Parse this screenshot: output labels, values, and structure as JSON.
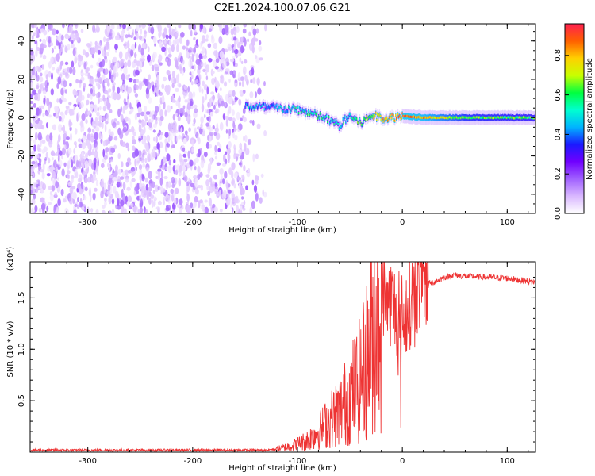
{
  "figure_title": "C2E1.2024.100.07.06.G21",
  "chart_data": [
    {
      "type": "heatmap",
      "xlabel": "Height of straight line (km)",
      "ylabel": "Frequency (Hz)",
      "xlim": [
        -355,
        127
      ],
      "ylim": [
        -50,
        49
      ],
      "x_ticks": [
        -300,
        -200,
        -100,
        0,
        100
      ],
      "y_ticks": [
        -40,
        -20,
        0,
        20,
        40
      ],
      "colorbar": {
        "label": "Normalized spectral amplitude",
        "range": [
          0,
          0.96
        ],
        "ticks": [
          "0.0",
          "0.2",
          "0.4",
          "0.6",
          "0.8"
        ],
        "colors": [
          "#ffffff",
          "#d9b8ff",
          "#a060ff",
          "#7000ff",
          "#1a1aff",
          "#00b4ff",
          "#00ffd0",
          "#00ff40",
          "#c8ff00",
          "#ffd000",
          "#ff6000",
          "#ff2050"
        ]
      },
      "regions": [
        {
          "name": "noise",
          "x_range": [
            -355,
            -130
          ],
          "y_range": [
            -50,
            49
          ],
          "amplitude": 0.08
        },
        {
          "name": "signal-track",
          "x": [
            -150,
            -120,
            -100,
            -80,
            -60,
            -50,
            -40,
            -30,
            -20,
            -10,
            0,
            20,
            60,
            127
          ],
          "y": [
            6,
            5,
            4,
            1,
            -4,
            1,
            -3,
            1,
            0,
            0,
            1,
            0,
            0,
            0
          ],
          "amplitude": [
            0.45,
            0.45,
            0.5,
            0.55,
            0.5,
            0.55,
            0.6,
            0.7,
            0.8,
            0.85,
            0.85,
            0.8,
            0.65,
            0.6
          ]
        }
      ]
    },
    {
      "type": "line",
      "xlabel": "Height of straight line (km)",
      "ylabel": "SNR (10 * v/v)",
      "y_multiplier_label": "(x10⁴)",
      "xlim": [
        -355,
        127
      ],
      "ylim": [
        0,
        1.85
      ],
      "x_ticks": [
        -300,
        -200,
        -100,
        0,
        100
      ],
      "y_ticks": [
        "0.5",
        "1.0",
        "1.5"
      ],
      "y_tick_values": [
        0.5,
        1.0,
        1.5
      ],
      "color": "#ee3333",
      "series": [
        {
          "x": [
            -355,
            -320,
            -300,
            -250,
            -200,
            -150,
            -130,
            -120,
            -110,
            -100,
            -90,
            -80,
            -70,
            -60,
            -50,
            -40,
            -35,
            -30,
            -25,
            -20,
            -15,
            -10,
            -5,
            0,
            5,
            10,
            15,
            20,
            25,
            30,
            40,
            50,
            60,
            80,
            100,
            127
          ],
          "y": [
            0.02,
            0.02,
            0.02,
            0.02,
            0.02,
            0.02,
            0.02,
            0.03,
            0.05,
            0.08,
            0.12,
            0.2,
            0.3,
            0.4,
            0.55,
            0.7,
            0.85,
            1.1,
            1.35,
            1.55,
            1.5,
            1.45,
            1.35,
            1.3,
            1.4,
            1.5,
            1.6,
            1.62,
            1.64,
            1.65,
            1.7,
            1.72,
            1.71,
            1.7,
            1.69,
            1.65
          ]
        }
      ]
    }
  ]
}
